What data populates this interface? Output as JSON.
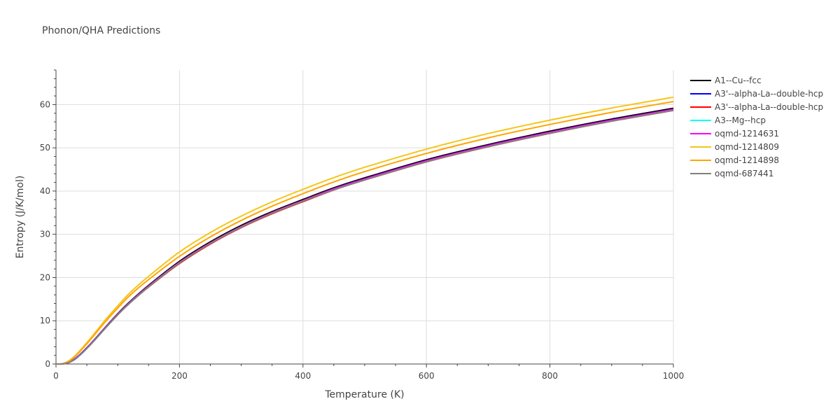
{
  "chart_data": {
    "type": "line",
    "title": "Phonon/QHA Predictions",
    "xlabel": "Temperature (K)",
    "ylabel": "Entropy (J/K/mol)",
    "xlim": [
      0,
      1000
    ],
    "ylim": [
      0,
      68
    ],
    "x_ticks": [
      0,
      200,
      400,
      600,
      800,
      1000
    ],
    "y_ticks": [
      0,
      10,
      20,
      30,
      40,
      50,
      60
    ],
    "grid": true,
    "legend_position": "right",
    "x": [
      0,
      10,
      20,
      30,
      40,
      50,
      60,
      80,
      100,
      120,
      150,
      200,
      250,
      300,
      350,
      400,
      450,
      500,
      600,
      700,
      800,
      900,
      1000
    ],
    "series": [
      {
        "name": "A1--Cu--fcc",
        "color": "#000000",
        "values": [
          0,
          0.02,
          0.3,
          1.1,
          2.3,
          3.7,
          5.2,
          8.4,
          11.5,
          14.3,
          18.0,
          23.5,
          28.0,
          31.8,
          35.0,
          37.8,
          40.5,
          42.8,
          47.0,
          50.5,
          53.6,
          56.4,
          58.9
        ]
      },
      {
        "name": "A3'--alpha-La--double-hcp",
        "color": "#0000ff",
        "values": [
          0,
          0.02,
          0.3,
          1.1,
          2.3,
          3.7,
          5.2,
          8.4,
          11.5,
          14.3,
          18.0,
          23.5,
          28.0,
          31.8,
          35.0,
          37.8,
          40.5,
          42.8,
          47.0,
          50.5,
          53.6,
          56.4,
          58.9
        ]
      },
      {
        "name": "A3'--alpha-La--double-hcp",
        "color": "#ff0000",
        "values": [
          0,
          0.02,
          0.3,
          1.1,
          2.3,
          3.7,
          5.2,
          8.4,
          11.5,
          14.3,
          18.0,
          23.5,
          28.0,
          31.8,
          35.0,
          37.8,
          40.5,
          42.8,
          47.0,
          50.5,
          53.6,
          56.4,
          58.9
        ]
      },
      {
        "name": "A3--Mg--hcp",
        "color": "#00ffff",
        "values": [
          0,
          0.02,
          0.3,
          1.0,
          2.2,
          3.6,
          5.1,
          8.3,
          11.4,
          14.2,
          17.9,
          23.4,
          27.9,
          31.7,
          34.9,
          37.7,
          40.3,
          42.6,
          46.8,
          50.3,
          53.4,
          56.2,
          58.7
        ]
      },
      {
        "name": "oqmd-1214631",
        "color": "#ff00ff",
        "values": [
          0,
          0.02,
          0.3,
          1.1,
          2.3,
          3.7,
          5.2,
          8.4,
          11.5,
          14.3,
          18.0,
          23.5,
          28.0,
          31.8,
          35.0,
          37.8,
          40.5,
          42.8,
          47.0,
          50.5,
          53.6,
          56.4,
          58.9
        ]
      },
      {
        "name": "oqmd-1214809",
        "color": "#f5c518",
        "values": [
          0,
          0.05,
          0.6,
          1.7,
          3.2,
          4.8,
          6.5,
          10.0,
          13.2,
          16.2,
          19.9,
          25.4,
          29.9,
          33.7,
          37.0,
          39.9,
          42.6,
          45.0,
          49.2,
          52.8,
          55.9,
          58.7,
          61.2
        ]
      },
      {
        "name": "oqmd-1214898",
        "color": "#ffa500",
        "values": [
          0,
          0.05,
          0.6,
          1.7,
          3.2,
          4.8,
          6.5,
          10.0,
          13.2,
          16.2,
          19.9,
          25.4,
          29.9,
          33.7,
          37.0,
          39.9,
          42.6,
          45.0,
          49.2,
          52.8,
          55.9,
          58.7,
          61.2
        ]
      },
      {
        "name": "oqmd-687441",
        "color": "#808080",
        "values": [
          0,
          0.02,
          0.3,
          1.0,
          2.2,
          3.6,
          5.1,
          8.3,
          11.4,
          14.2,
          17.9,
          23.4,
          27.9,
          31.7,
          34.9,
          37.7,
          40.3,
          42.6,
          46.8,
          50.3,
          53.4,
          56.2,
          58.7
        ]
      }
    ]
  }
}
